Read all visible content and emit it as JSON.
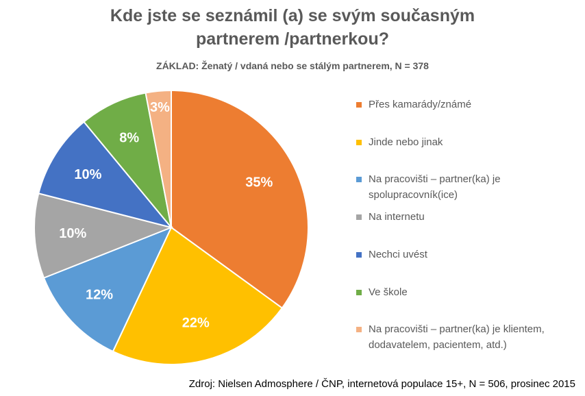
{
  "chart_data": {
    "type": "pie",
    "title_line1": "Kde jste se seznámil (a) se svým současným",
    "title_line2": "partnerem /partnerkou?",
    "subtitle": "ZÁKLAD: Ženatý / vdaná nebo se stálým partnerem, N = 378",
    "source": "Zdroj: Nielsen Admosphere / ČNP, internetová populace 15+, N = 506, prosinec 2015",
    "legend_placement": "right",
    "slices": [
      {
        "label": "Přes kamarády/známé",
        "value": 35,
        "data_label": "35%",
        "color": "#ED7D31"
      },
      {
        "label": "Jinde nebo jinak",
        "value": 22,
        "data_label": "22%",
        "color": "#FFC000"
      },
      {
        "label": "Na pracovišti – partner(ka) je spolupracovník(ice)",
        "value": 12,
        "data_label": "12%",
        "color": "#5B9BD5"
      },
      {
        "label": "Na internetu",
        "value": 10,
        "data_label": "10%",
        "color": "#A5A5A5"
      },
      {
        "label": "Nechci uvést",
        "value": 10,
        "data_label": "10%",
        "color": "#4472C4"
      },
      {
        "label": "Ve škole",
        "value": 8,
        "data_label": "8%",
        "color": "#70AD47"
      },
      {
        "label": "Na pracovišti – partner(ka) je klientem, dodavatelem, pacientem, atd.)",
        "value": 3,
        "data_label": "3%",
        "color": "#F4B183"
      }
    ]
  }
}
